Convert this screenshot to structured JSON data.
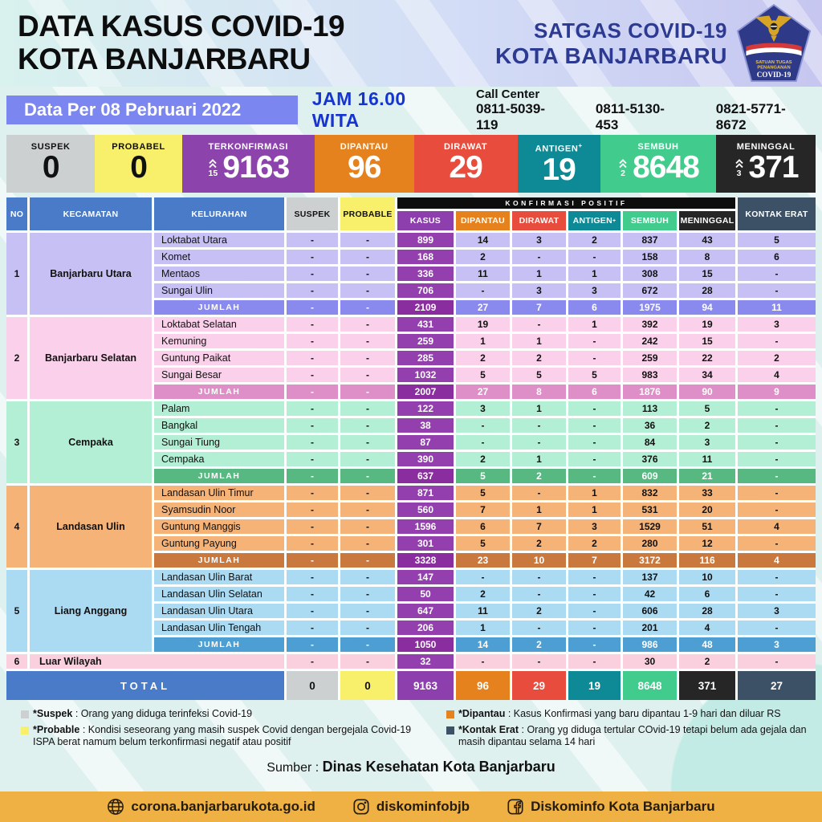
{
  "header": {
    "title_line1": "DATA KASUS COVID-19",
    "title_line2": "KOTA BANJARBARU",
    "org_line1": "SATGAS COVID-19",
    "org_line2": "KOTA BANJARBARU",
    "logo": {
      "text_top": "SATUAN TUGAS",
      "text_mid": "PENANGANAN",
      "text_bottom": "COVID-19"
    }
  },
  "info_bar": {
    "date_label": "Data Per 08 Pebruari 2022",
    "time_label": "JAM 16.00 WITA",
    "call_center_label": "Call Center",
    "phones": [
      "0811-5039-119",
      "0811-5130-453",
      "0821-5771-8672"
    ]
  },
  "stats": [
    {
      "key": "suspek",
      "label": "SUSPEK",
      "value": "0",
      "color": "#ccd0d0",
      "text_color": "#111111"
    },
    {
      "key": "probabel",
      "label": "PROBABEL",
      "value": "0",
      "color": "#f8ef6b",
      "text_color": "#111111"
    },
    {
      "key": "terkonfirmasi",
      "label": "TERKONFIRMASI",
      "value": "9163",
      "delta": "15",
      "color": "#8c44ac"
    },
    {
      "key": "dipantau",
      "label": "DIPANTAU",
      "value": "96",
      "color": "#e5821e"
    },
    {
      "key": "dirawat",
      "label": "DIRAWAT",
      "value": "29",
      "color": "#e84c3d"
    },
    {
      "key": "antigen",
      "label": "ANTIGEN",
      "sup": "+",
      "value": "19",
      "color": "#0e8a96"
    },
    {
      "key": "sembuh",
      "label": "SEMBUH",
      "value": "8648",
      "delta": "2",
      "color": "#41cc8d"
    },
    {
      "key": "meninggal",
      "label": "MENINGGAL",
      "value": "371",
      "delta": "3",
      "color": "#262626"
    }
  ],
  "table": {
    "headers": {
      "no": "NO",
      "kecamatan": "KECAMATAN",
      "kelurahan": "KELURAHAN",
      "suspek": "SUSPEK",
      "probable": "PROBABLE",
      "group_bar": "KONFIRMASI POSITIF",
      "kasus": "KASUS",
      "dipantau": "DIPANTAU",
      "dirawat": "DIRAWAT",
      "antigen": "ANTIGEN",
      "antigen_sup": "+",
      "sembuh": "SEMBUH",
      "meninggal": "MENINGGAL",
      "kontak": "KONTAK ERAT"
    },
    "jumlah_label": "JUMLAH",
    "colors": {
      "header_blue": "#4a7bc9",
      "suspek": "#ccd0d0",
      "probable": "#f8ef6b",
      "kasus_header": "#8e3fae",
      "kasus_cell": "#9340ae",
      "kasus_dark": "#8a2d9f",
      "dipantau": "#e5821e",
      "dirawat": "#e84c3d",
      "antigen": "#0e8a96",
      "sembuh": "#41cc8d",
      "meninggal": "#262626",
      "kontak": "#3d5166",
      "bar_black": "#0d0d0d"
    },
    "groups": [
      {
        "no": "1",
        "name": "Banjarbaru Utara",
        "light": "#c6c0f4",
        "mid": "#8a8aee",
        "rows": [
          {
            "name": "Loktabat Utara",
            "cells": [
              "-",
              "-",
              "899",
              "14",
              "3",
              "2",
              "837",
              "43",
              "5"
            ]
          },
          {
            "name": "Komet",
            "cells": [
              "-",
              "-",
              "168",
              "2",
              "-",
              "-",
              "158",
              "8",
              "6"
            ]
          },
          {
            "name": "Mentaos",
            "cells": [
              "-",
              "-",
              "336",
              "11",
              "1",
              "1",
              "308",
              "15",
              "-"
            ]
          },
          {
            "name": "Sungai Ulin",
            "cells": [
              "-",
              "-",
              "706",
              "-",
              "3",
              "3",
              "672",
              "28",
              "-"
            ]
          }
        ],
        "jumlah": [
          "-",
          "-",
          "2109",
          "27",
          "7",
          "6",
          "1975",
          "94",
          "11"
        ]
      },
      {
        "no": "2",
        "name": "Banjarbaru Selatan",
        "light": "#fbd0ea",
        "mid": "#de8fc7",
        "rows": [
          {
            "name": "Loktabat Selatan",
            "cells": [
              "-",
              "-",
              "431",
              "19",
              "-",
              "1",
              "392",
              "19",
              "3"
            ]
          },
          {
            "name": "Kemuning",
            "cells": [
              "-",
              "-",
              "259",
              "1",
              "1",
              "-",
              "242",
              "15",
              "-"
            ]
          },
          {
            "name": "Guntung Paikat",
            "cells": [
              "-",
              "-",
              "285",
              "2",
              "2",
              "-",
              "259",
              "22",
              "2"
            ]
          },
          {
            "name": "Sungai Besar",
            "cells": [
              "-",
              "-",
              "1032",
              "5",
              "5",
              "5",
              "983",
              "34",
              "4"
            ]
          }
        ],
        "jumlah": [
          "-",
          "-",
          "2007",
          "27",
          "8",
          "6",
          "1876",
          "90",
          "9"
        ]
      },
      {
        "no": "3",
        "name": "Cempaka",
        "light": "#b2efd5",
        "mid": "#57b981",
        "rows": [
          {
            "name": "Palam",
            "cells": [
              "-",
              "-",
              "122",
              "3",
              "1",
              "-",
              "113",
              "5",
              "-"
            ]
          },
          {
            "name": "Bangkal",
            "cells": [
              "-",
              "-",
              "38",
              "-",
              "-",
              "-",
              "36",
              "2",
              "-"
            ]
          },
          {
            "name": "Sungai Tiung",
            "cells": [
              "-",
              "-",
              "87",
              "-",
              "-",
              "-",
              "84",
              "3",
              "-"
            ]
          },
          {
            "name": "Cempaka",
            "cells": [
              "-",
              "-",
              "390",
              "2",
              "1",
              "-",
              "376",
              "11",
              "-"
            ]
          }
        ],
        "jumlah": [
          "-",
          "-",
          "637",
          "5",
          "2",
          "-",
          "609",
          "21",
          "-"
        ]
      },
      {
        "no": "4",
        "name": "Landasan Ulin",
        "light": "#f6b378",
        "mid": "#c9793e",
        "rows": [
          {
            "name": "Landasan Ulin Timur",
            "cells": [
              "-",
              "-",
              "871",
              "5",
              "-",
              "1",
              "832",
              "33",
              "-"
            ]
          },
          {
            "name": "Syamsudin Noor",
            "cells": [
              "-",
              "-",
              "560",
              "7",
              "1",
              "1",
              "531",
              "20",
              "-"
            ]
          },
          {
            "name": "Guntung Manggis",
            "cells": [
              "-",
              "-",
              "1596",
              "6",
              "7",
              "3",
              "1529",
              "51",
              "4"
            ]
          },
          {
            "name": "Guntung Payung",
            "cells": [
              "-",
              "-",
              "301",
              "5",
              "2",
              "2",
              "280",
              "12",
              "-"
            ]
          }
        ],
        "jumlah": [
          "-",
          "-",
          "3328",
          "23",
          "10",
          "7",
          "3172",
          "116",
          "4"
        ]
      },
      {
        "no": "5",
        "name": "Liang Anggang",
        "light": "#abdaf3",
        "mid": "#4d9ed3",
        "rows": [
          {
            "name": "Landasan Ulin Barat",
            "cells": [
              "-",
              "-",
              "147",
              "-",
              "-",
              "-",
              "137",
              "10",
              "-"
            ]
          },
          {
            "name": "Landasan Ulin Selatan",
            "cells": [
              "-",
              "-",
              "50",
              "2",
              "-",
              "-",
              "42",
              "6",
              "-"
            ]
          },
          {
            "name": "Landasan Ulin Utara",
            "cells": [
              "-",
              "-",
              "647",
              "11",
              "2",
              "-",
              "606",
              "28",
              "3"
            ]
          },
          {
            "name": "Landasan Ulin Tengah",
            "cells": [
              "-",
              "-",
              "206",
              "1",
              "-",
              "-",
              "201",
              "4",
              "-"
            ]
          }
        ],
        "jumlah": [
          "-",
          "-",
          "1050",
          "14",
          "2",
          "-",
          "986",
          "48",
          "3"
        ]
      },
      {
        "no": "6",
        "name": "Luar Wilayah",
        "light": "#fbd0de",
        "cells": [
          "-",
          "-",
          "32",
          "-",
          "-",
          "-",
          "30",
          "2",
          "-"
        ]
      }
    ],
    "total": {
      "label": "TOTAL",
      "cells": [
        "0",
        "0",
        "9163",
        "96",
        "29",
        "19",
        "8648",
        "371",
        "27"
      ],
      "cell_color_keys": [
        "suspek",
        "probable",
        "kasus_header",
        "dipantau",
        "dirawat",
        "antigen",
        "sembuh",
        "meninggal",
        "kontak"
      ]
    }
  },
  "legend": {
    "left": [
      {
        "swatch": "#ccd0d0",
        "term": "*Suspek",
        "desc": "Orang yang diduga terinfeksi Covid-19"
      },
      {
        "swatch": "#f8ef6b",
        "term": "*Probable",
        "desc": "Kondisi seseorang yang masih suspek Covid dengan bergejala Covid-19 ISPA berat namum belum terkonfirmasi negatif atau positif"
      }
    ],
    "right": [
      {
        "swatch": "#e5821e",
        "term": "*Dipantau",
        "desc": "Kasus Konfirmasi yang baru dipantau 1-9 hari dan diluar RS"
      },
      {
        "swatch": "#3d5166",
        "term": "*Kontak Erat",
        "desc": "Orang yg diduga tertular COvid-19 tetapi belum ada gejala dan masih dipantau selama 14 hari"
      }
    ]
  },
  "source": {
    "prefix": "Sumber : ",
    "name": "Dinas Kesehatan Kota Banjarbaru"
  },
  "footer": {
    "website": "corona.banjarbarukota.go.id",
    "instagram": "diskominfobjb",
    "facebook": "Diskominfo Kota Banjarbaru"
  }
}
